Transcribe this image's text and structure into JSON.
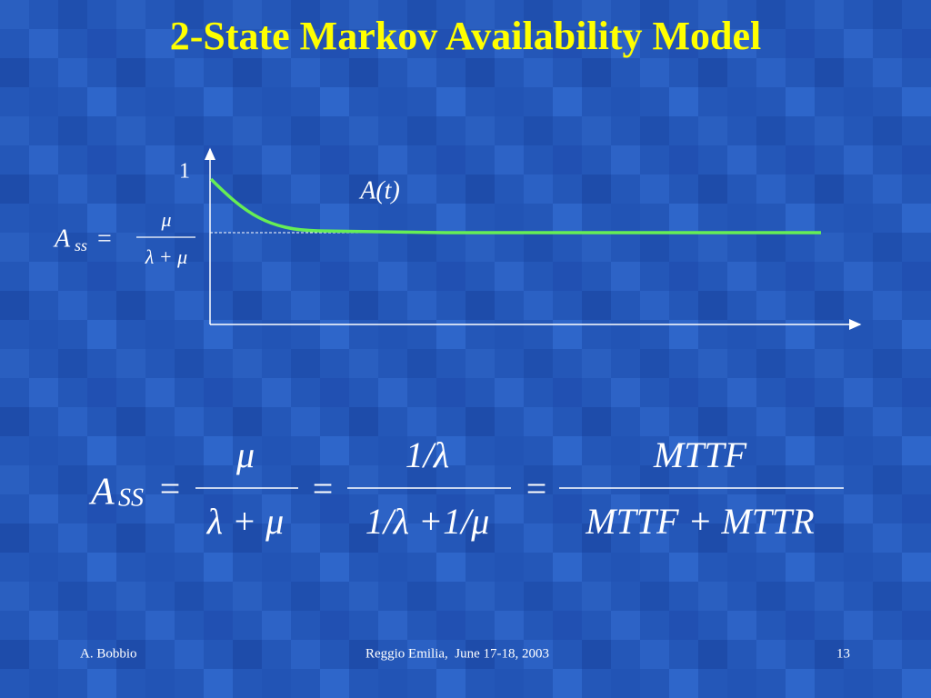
{
  "title": "2-State Markov Availability Model",
  "diagram": {
    "y_axis_label": "1",
    "curve_label": "A(t)",
    "steady_state": {
      "symbol": "A",
      "subscript": "ss",
      "operator": "=",
      "numerator": "μ",
      "denominator": "λ + μ"
    }
  },
  "formula": {
    "symbol": "A",
    "subscript": "SS",
    "operator": "=",
    "terms": [
      {
        "numerator": "μ",
        "denominator": "λ + μ"
      },
      {
        "numerator": "1/λ",
        "denominator": "1/λ +1/μ"
      },
      {
        "numerator": "MTTF",
        "denominator": "MTTF + MTTR"
      }
    ]
  },
  "footer": {
    "author": "A. Bobbio",
    "event": "Reggio Emilia,  June 17-18, 2003",
    "page": "13"
  }
}
